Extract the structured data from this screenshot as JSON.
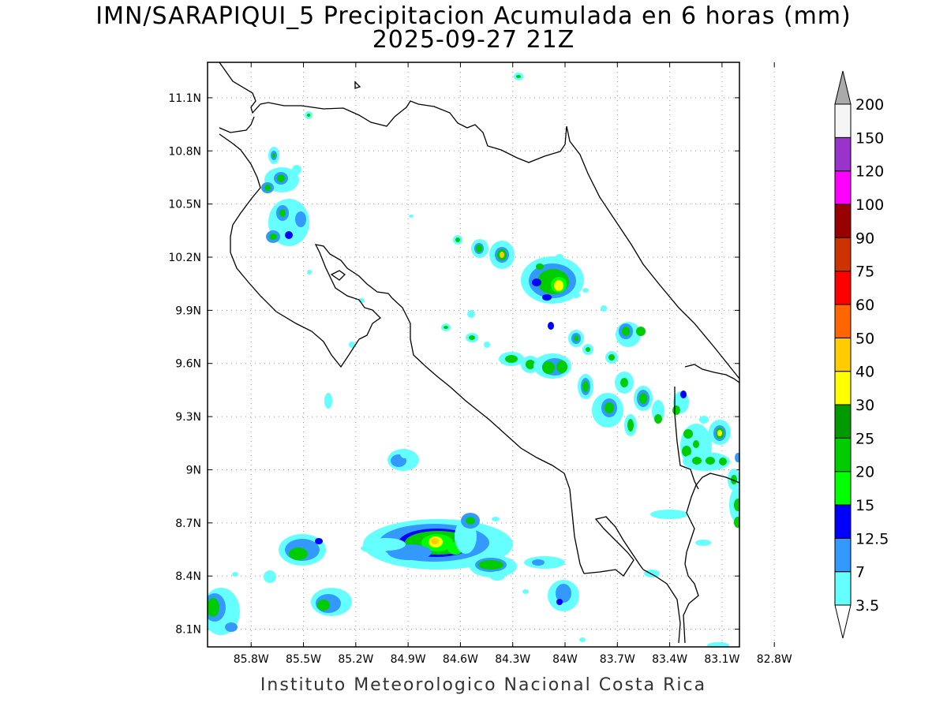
{
  "title": "IMN/SARAPIQUI_5 Precipitacion Acumulada en 6 horas (mm)",
  "subtitle": "2025-09-27 21Z",
  "footer": "Instituto Meteorologico Nacional Costa Rica",
  "map": {
    "lon_range": [
      -86.05,
      -83.0
    ],
    "lat_range": [
      8.0,
      11.3
    ],
    "lat_ticks": [
      {
        "label": "11.1N",
        "value": 11.1
      },
      {
        "label": "10.8N",
        "value": 10.8
      },
      {
        "label": "10.5N",
        "value": 10.5
      },
      {
        "label": "10.2N",
        "value": 10.2
      },
      {
        "label": "9.9N",
        "value": 9.9
      },
      {
        "label": "9.6N",
        "value": 9.6
      },
      {
        "label": "9.3N",
        "value": 9.3
      },
      {
        "label": "9N",
        "value": 9.0
      },
      {
        "label": "8.7N",
        "value": 8.7
      },
      {
        "label": "8.4N",
        "value": 8.4
      },
      {
        "label": "8.1N",
        "value": 8.1
      }
    ],
    "lon_ticks": [
      {
        "label": "85.8W",
        "value": -85.8
      },
      {
        "label": "85.5W",
        "value": -85.5
      },
      {
        "label": "85.2W",
        "value": -85.2
      },
      {
        "label": "84.9W",
        "value": -84.9
      },
      {
        "label": "84.6W",
        "value": -84.6
      },
      {
        "label": "84.3W",
        "value": -84.3
      },
      {
        "label": "84W",
        "value": -84.0
      },
      {
        "label": "83.7W",
        "value": -83.7
      },
      {
        "label": "83.4W",
        "value": -83.4
      },
      {
        "label": "83.1W",
        "value": -83.1
      },
      {
        "label": "82.8W",
        "value": -82.8
      }
    ],
    "grid": "dotted"
  },
  "colorbar": {
    "levels": [
      {
        "label": "3.5",
        "color": "#66ffff"
      },
      {
        "label": "7",
        "color": "#3399ff"
      },
      {
        "label": "12.5",
        "color": "#0000ff"
      },
      {
        "label": "15",
        "color": "#00ff00"
      },
      {
        "label": "20",
        "color": "#00cc00"
      },
      {
        "label": "25",
        "color": "#009900"
      },
      {
        "label": "30",
        "color": "#ffff00"
      },
      {
        "label": "40",
        "color": "#ffcc00"
      },
      {
        "label": "50",
        "color": "#ff6600"
      },
      {
        "label": "60",
        "color": "#ff0000"
      },
      {
        "label": "75",
        "color": "#cc3300"
      },
      {
        "label": "90",
        "color": "#990000"
      },
      {
        "label": "100",
        "color": "#ff00ff"
      },
      {
        "label": "120",
        "color": "#9933cc"
      },
      {
        "label": "150",
        "color": "#f5f5f5"
      },
      {
        "label": "200",
        "color": "#aaaaaa"
      }
    ]
  }
}
